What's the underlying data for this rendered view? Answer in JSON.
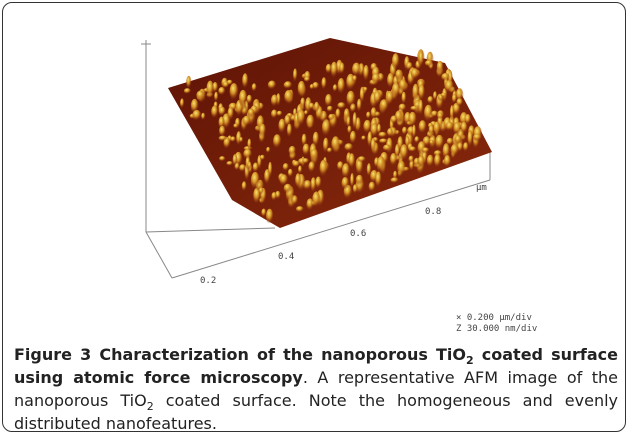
{
  "figure": {
    "axis_ticks": [
      "0.2",
      "0.4",
      "0.6",
      "0.8"
    ],
    "axis_unit": "µm",
    "scale": [
      "×  0.200 µm/div",
      "Z  30.000 nm/div"
    ],
    "caption": {
      "title": [
        "Figure 3 Characterization of the nanoporous TiO",
        "2",
        " coated surface using atomic force microscopy"
      ],
      "body": [
        ". A representative AFM image of the nanoporous TiO",
        "2",
        " coated surface. Note the homogeneous and evenly distributed nanofeatures."
      ]
    }
  }
}
